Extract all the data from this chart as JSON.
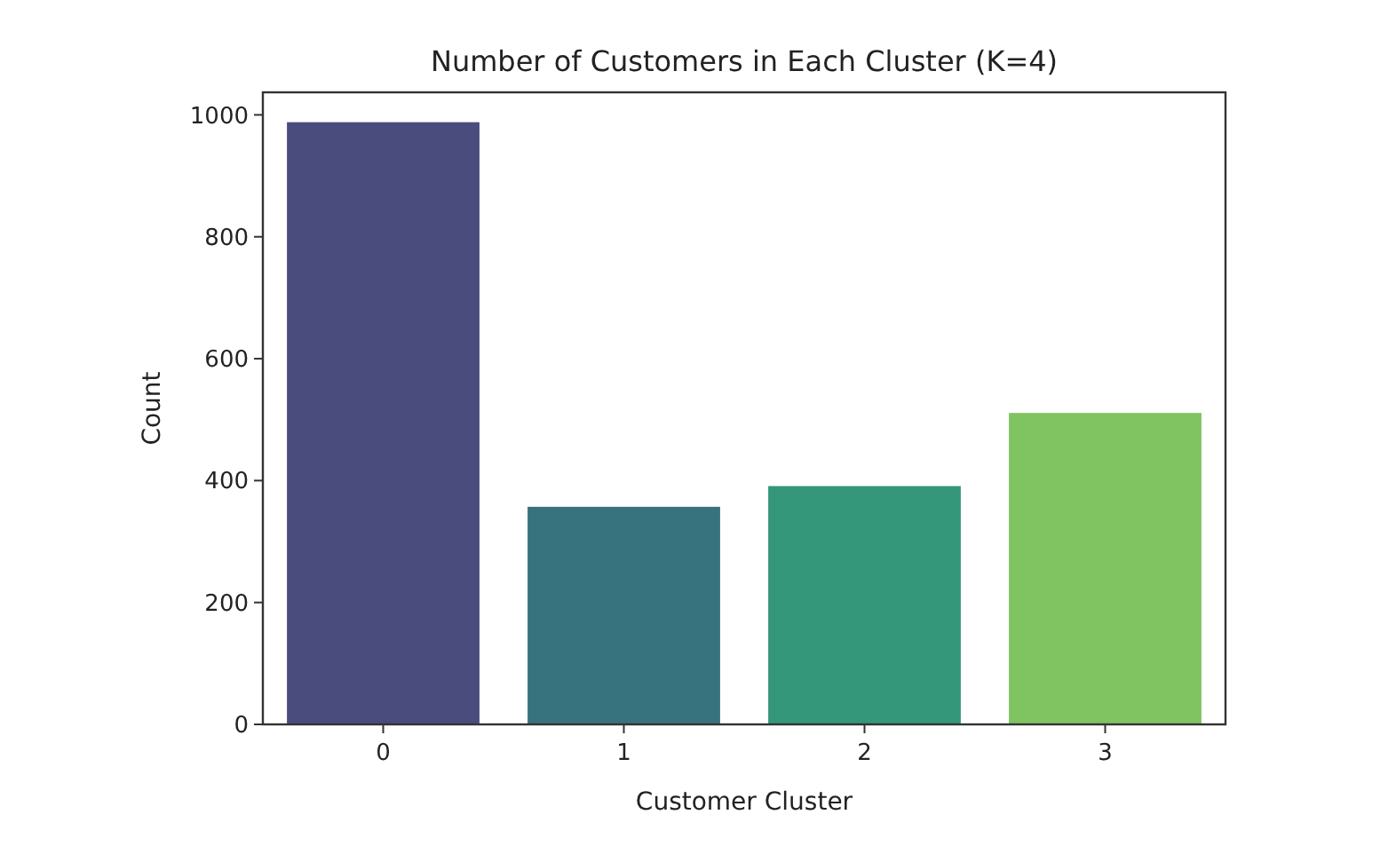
{
  "chart_data": {
    "type": "bar",
    "title": "Number of Customers in Each Cluster (K=4)",
    "xlabel": "Customer Cluster",
    "ylabel": "Count",
    "categories": [
      "0",
      "1",
      "2",
      "3"
    ],
    "values": [
      988,
      357,
      391,
      511
    ],
    "colors": [
      "#4a4c7d",
      "#37727f",
      "#35977a",
      "#80c361"
    ],
    "ylim": [
      0,
      1037
    ],
    "yticks": [
      0,
      200,
      400,
      600,
      800,
      1000
    ],
    "grid": false
  }
}
